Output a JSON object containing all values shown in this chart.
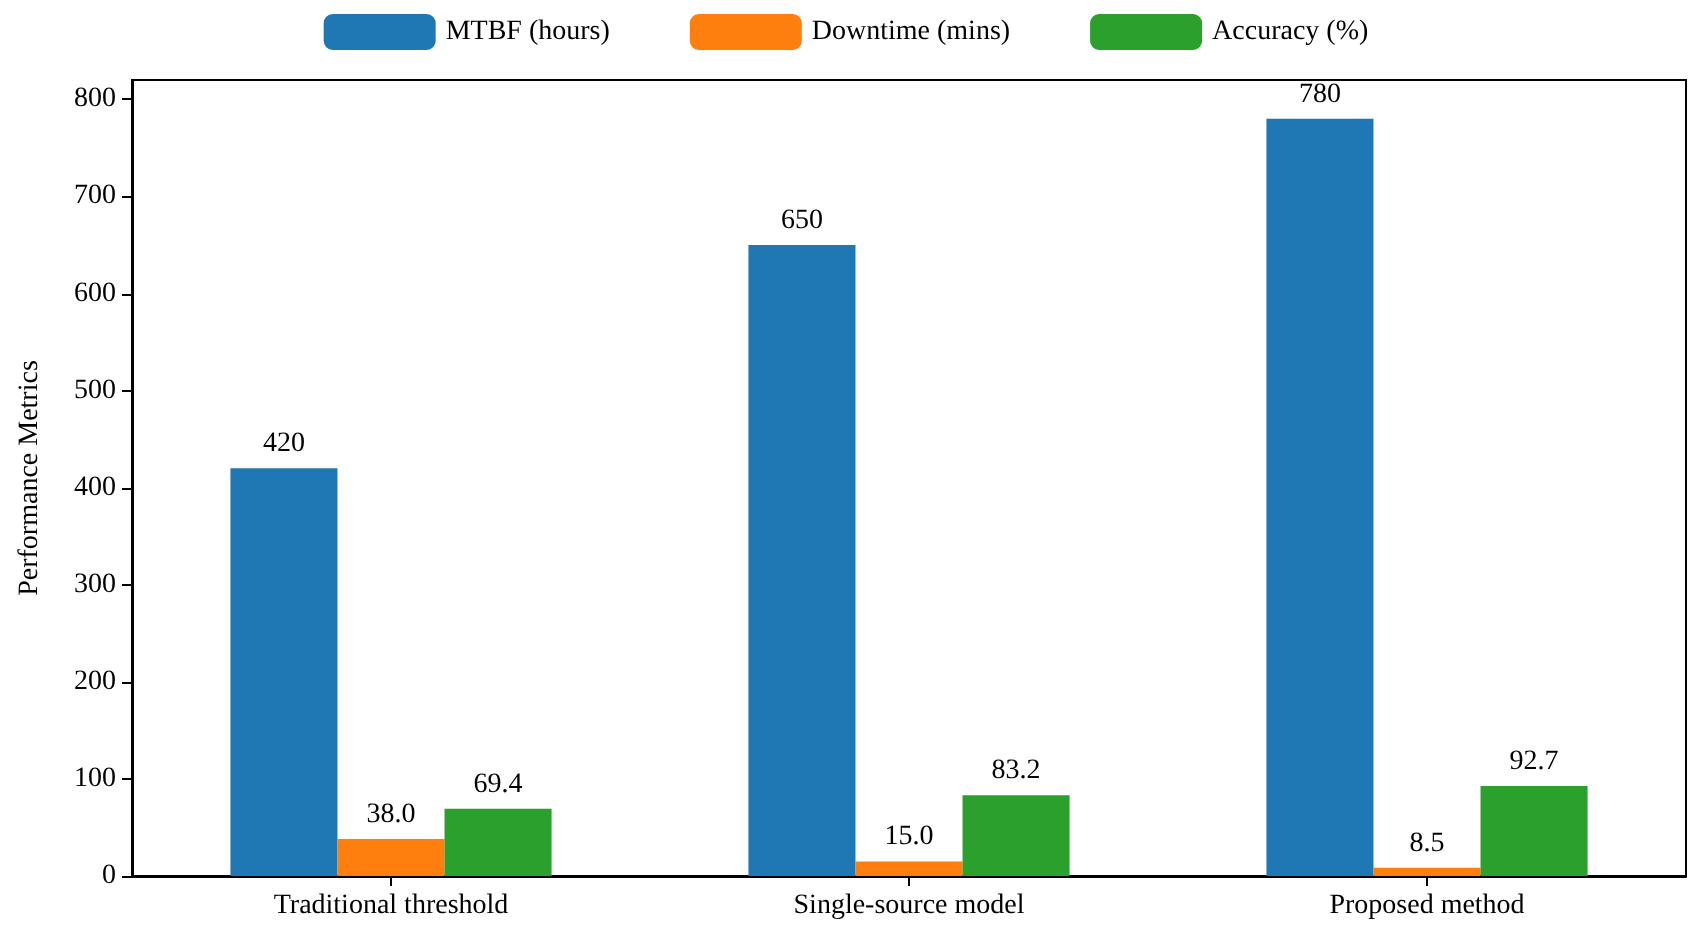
{
  "chart_data": {
    "type": "bar",
    "ylabel": "Performance Metrics",
    "categories": [
      "Traditional threshold",
      "Single-source model",
      "Proposed method"
    ],
    "series": [
      {
        "name": "MTBF (hours)",
        "color": "#1f77b4",
        "values": [
          420,
          650,
          780
        ],
        "value_labels": [
          "420",
          "650",
          "780"
        ]
      },
      {
        "name": "Downtime (mins)",
        "color": "#ff7f0e",
        "values": [
          38,
          15,
          8.5
        ],
        "value_labels": [
          "38.0",
          "15.0",
          "8.5"
        ]
      },
      {
        "name": "Accuracy (%)",
        "color": "#2ca02c",
        "values": [
          69.4,
          83.2,
          92.7
        ],
        "value_labels": [
          "69.4",
          "83.2",
          "92.7"
        ]
      }
    ],
    "ylim": [
      0,
      820
    ],
    "yticks": [
      0,
      100,
      200,
      300,
      400,
      500,
      600,
      700,
      800
    ],
    "grid": false,
    "legend": "top"
  }
}
